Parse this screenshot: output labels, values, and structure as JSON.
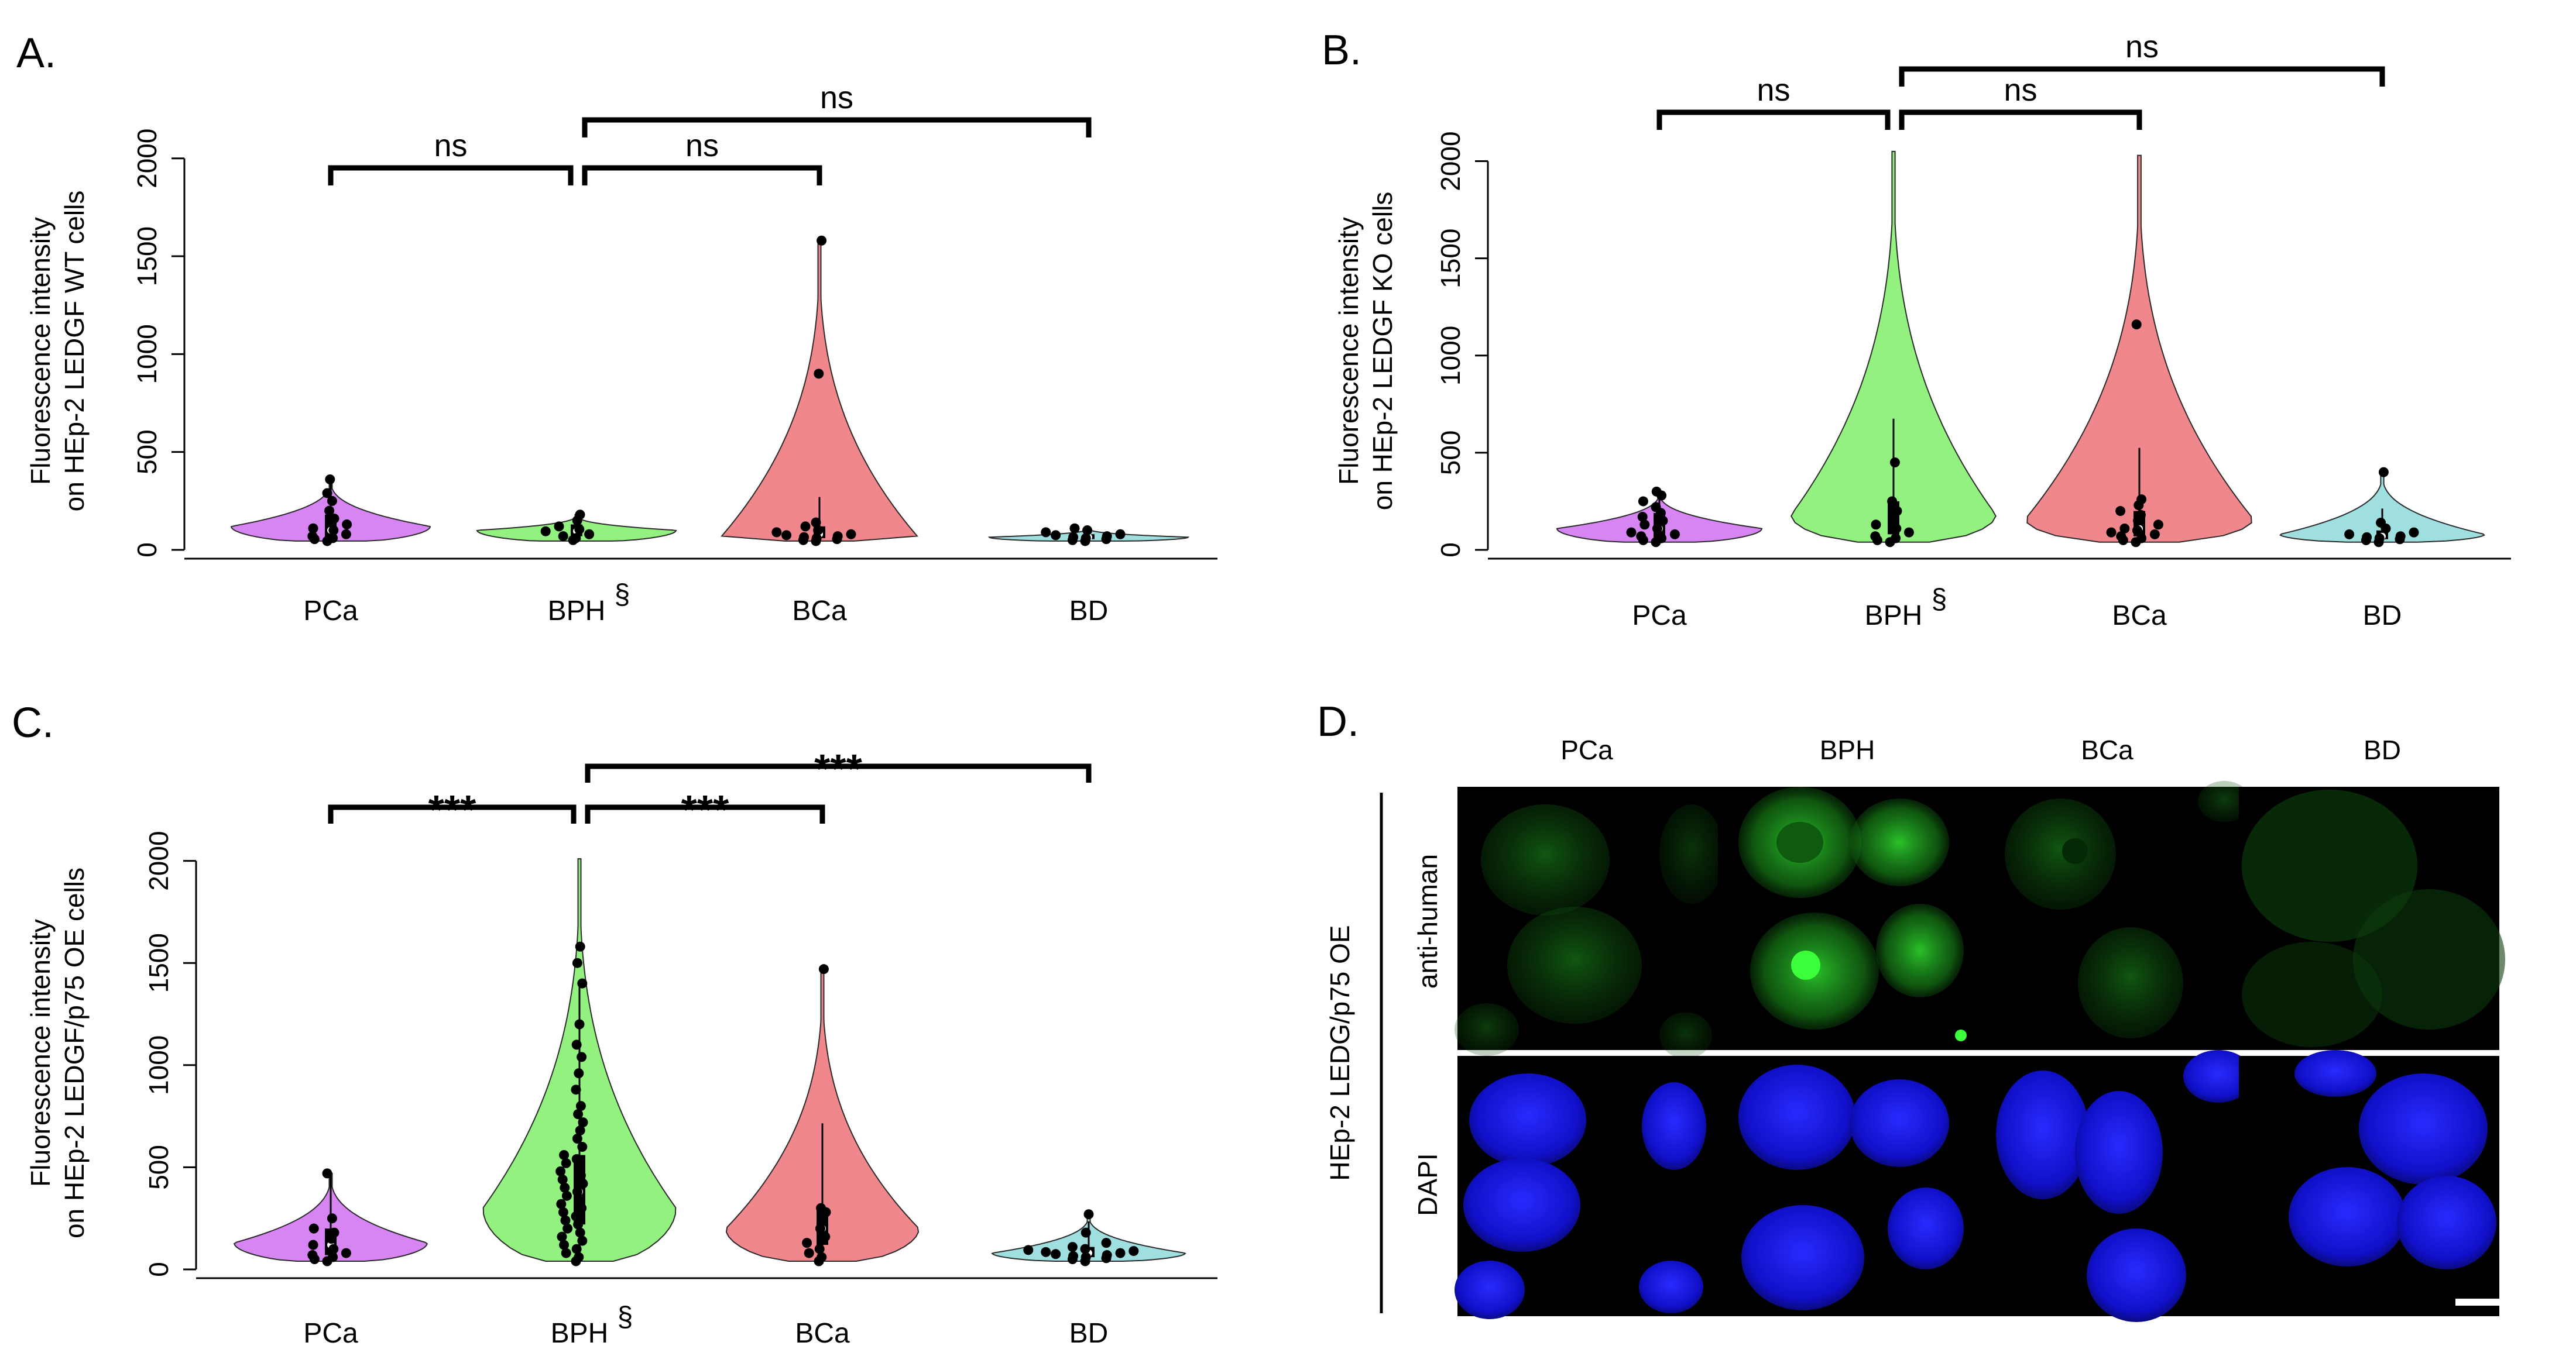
{
  "figure": {
    "panel_labels": [
      "A.",
      "B.",
      "C.",
      "D."
    ]
  },
  "chart_data": [
    {
      "id": "A",
      "type": "violin",
      "ylabel_line1": "Fluorescence intensity",
      "ylabel_line2": "on HEp-2 LEDGF WT cells",
      "ylim": [
        0,
        2000
      ],
      "yticks": [
        "0",
        "500",
        "1000",
        "1500",
        "2000"
      ],
      "ytick_values": [
        0,
        500,
        1000,
        1500,
        2000
      ],
      "categories": [
        "PCa",
        "BPH",
        "BCa",
        "BD"
      ],
      "category_marks": [
        "",
        "§",
        "",
        ""
      ],
      "colors": [
        "#d785f2",
        "#93f27f",
        "#f0878c",
        "#9fdfe0"
      ],
      "series": [
        {
          "name": "PCa",
          "min": 45,
          "max": 360,
          "mode": 120,
          "width": 0.45,
          "q1": 60,
          "median": 100,
          "q3": 180,
          "points": [
            45,
            55,
            60,
            70,
            80,
            100,
            110,
            130,
            160,
            200,
            250,
            290,
            360
          ]
        },
        {
          "name": "BPH",
          "min": 45,
          "max": 180,
          "mode": 100,
          "width": 0.45,
          "q1": 70,
          "median": 95,
          "q3": 130,
          "points": [
            50,
            60,
            70,
            80,
            95,
            105,
            120,
            150,
            180
          ]
        },
        {
          "name": "BCa",
          "min": 45,
          "max": 1580,
          "mode": 60,
          "width": 0.45,
          "q1": 60,
          "median": 80,
          "q3": 120,
          "points": [
            45,
            50,
            55,
            60,
            65,
            70,
            75,
            80,
            90,
            100,
            120,
            140,
            900,
            1580
          ]
        },
        {
          "name": "BD",
          "min": 45,
          "max": 110,
          "mode": 65,
          "width": 0.45,
          "q1": 55,
          "median": 65,
          "q3": 80,
          "points": [
            45,
            50,
            55,
            60,
            65,
            70,
            75,
            80,
            90,
            100,
            110
          ]
        }
      ],
      "comparisons": [
        {
          "from": "PCa",
          "to": "BPH",
          "label": "ns",
          "tier": 1
        },
        {
          "from": "BPH",
          "to": "BCa",
          "label": "ns",
          "tier": 1
        },
        {
          "from": "BPH",
          "to": "BD",
          "label": "ns",
          "tier": 2
        }
      ]
    },
    {
      "id": "B",
      "type": "violin",
      "ylabel_line1": "Fluorescence intensity",
      "ylabel_line2": "on HEp-2 LEDGF KO cells",
      "ylim": [
        0,
        2000
      ],
      "yticks": [
        "0",
        "500",
        "1000",
        "1500",
        "2000"
      ],
      "ytick_values": [
        0,
        500,
        1000,
        1500,
        2000
      ],
      "categories": [
        "PCa",
        "BPH",
        "BCa",
        "BD"
      ],
      "category_marks": [
        "",
        "§",
        "",
        ""
      ],
      "colors": [
        "#d785f2",
        "#93f27f",
        "#f0878c",
        "#9fdfe0"
      ],
      "series": [
        {
          "name": "PCa",
          "min": 40,
          "max": 300,
          "mode": 110,
          "width": 0.45,
          "q1": 60,
          "median": 110,
          "q3": 190,
          "points": [
            40,
            50,
            60,
            70,
            80,
            90,
            110,
            130,
            150,
            170,
            190,
            220,
            250,
            280,
            300
          ]
        },
        {
          "name": "BPH",
          "min": 40,
          "max": 2050,
          "mode": 180,
          "width": 0.45,
          "q1": 80,
          "median": 150,
          "q3": 250,
          "points": [
            40,
            50,
            60,
            70,
            90,
            110,
            130,
            150,
            200,
            250,
            450
          ]
        },
        {
          "name": "BCa",
          "min": 40,
          "max": 2030,
          "mode": 160,
          "width": 0.5,
          "q1": 70,
          "median": 110,
          "q3": 200,
          "points": [
            40,
            50,
            60,
            70,
            80,
            90,
            100,
            110,
            130,
            150,
            180,
            200,
            230,
            260,
            1160
          ]
        },
        {
          "name": "BD",
          "min": 40,
          "max": 400,
          "mode": 80,
          "width": 0.45,
          "q1": 55,
          "median": 70,
          "q3": 100,
          "points": [
            40,
            50,
            55,
            60,
            65,
            70,
            80,
            90,
            110,
            140,
            400
          ]
        }
      ],
      "comparisons": [
        {
          "from": "PCa",
          "to": "BPH",
          "label": "ns",
          "tier": 1
        },
        {
          "from": "BPH",
          "to": "BCa",
          "label": "ns",
          "tier": 1
        },
        {
          "from": "BPH",
          "to": "BD",
          "label": "ns",
          "tier": 2
        }
      ]
    },
    {
      "id": "C",
      "type": "violin",
      "ylabel_line1": "Fluorescence intensity",
      "ylabel_line2": "on HEp-2 LEDGF/p75 OE cells",
      "ylim": [
        0,
        2000
      ],
      "yticks": [
        "0",
        "500",
        "1000",
        "1500",
        "2000"
      ],
      "ytick_values": [
        0,
        500,
        1000,
        1500,
        2000
      ],
      "categories": [
        "PCa",
        "BPH",
        "BCa",
        "BD"
      ],
      "category_marks": [
        "",
        "§",
        "",
        ""
      ],
      "colors": [
        "#d785f2",
        "#93f27f",
        "#f0878c",
        "#9fdfe0"
      ],
      "series": [
        {
          "name": "PCa",
          "min": 40,
          "max": 470,
          "mode": 130,
          "width": 0.45,
          "q1": 70,
          "median": 120,
          "q3": 200,
          "points": [
            40,
            50,
            60,
            70,
            80,
            100,
            120,
            150,
            180,
            200,
            250,
            470
          ]
        },
        {
          "name": "BPH",
          "min": 40,
          "max": 2010,
          "mode": 300,
          "width": 0.45,
          "q1": 220,
          "median": 380,
          "q3": 560,
          "points": [
            40,
            60,
            80,
            100,
            120,
            140,
            160,
            180,
            200,
            220,
            240,
            260,
            280,
            300,
            320,
            340,
            360,
            380,
            400,
            420,
            440,
            460,
            480,
            500,
            520,
            540,
            560,
            600,
            640,
            680,
            720,
            760,
            800,
            880,
            960,
            1040,
            1100,
            1200,
            1400,
            1500,
            1580
          ]
        },
        {
          "name": "BCa",
          "min": 40,
          "max": 1470,
          "mode": 200,
          "width": 0.45,
          "q1": 120,
          "median": 200,
          "q3": 290,
          "points": [
            40,
            60,
            80,
            100,
            130,
            160,
            200,
            250,
            280,
            300,
            1470
          ]
        },
        {
          "name": "BD",
          "min": 40,
          "max": 270,
          "mode": 80,
          "width": 0.45,
          "q1": 60,
          "median": 80,
          "q3": 110,
          "points": [
            40,
            50,
            55,
            60,
            65,
            70,
            75,
            80,
            85,
            90,
            95,
            100,
            110,
            130,
            180,
            270
          ]
        }
      ],
      "comparisons": [
        {
          "from": "PCa",
          "to": "BPH",
          "label": "***",
          "tier": 1
        },
        {
          "from": "BPH",
          "to": "BCa",
          "label": "***",
          "tier": 1
        },
        {
          "from": "BPH",
          "to": "BD",
          "label": "***",
          "tier": 2
        }
      ]
    }
  ],
  "microscopy": {
    "columns": [
      "PCa",
      "BPH",
      "BCa",
      "BD"
    ],
    "side_label": "HEp-2 LEDG/p75 OE",
    "rows": [
      {
        "label": "anti-human",
        "color": "#1bb81b"
      },
      {
        "label": "DAPI",
        "color": "#1a1ae6"
      }
    ]
  }
}
